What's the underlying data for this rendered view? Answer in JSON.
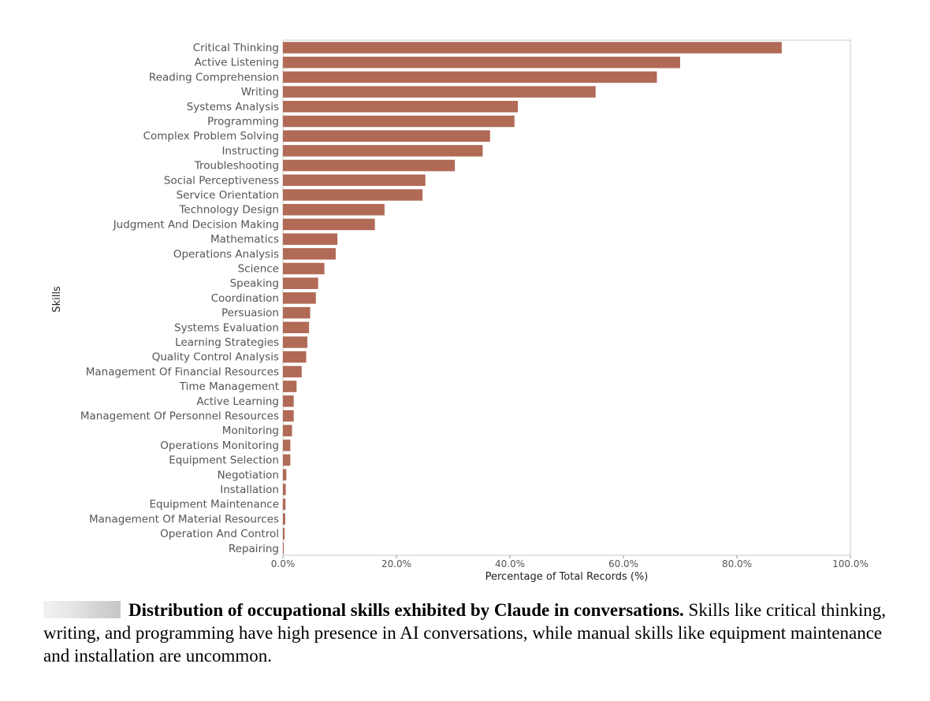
{
  "chart_data": {
    "type": "bar",
    "orientation": "horizontal",
    "xlabel": "Percentage of Total Records (%)",
    "ylabel": "Skills",
    "xlim": [
      0,
      100
    ],
    "xticks": [
      0,
      20,
      40,
      60,
      80,
      100
    ],
    "xtick_labels": [
      "0.0%",
      "20.0%",
      "40.0%",
      "60.0%",
      "80.0%",
      "100.0%"
    ],
    "grid": false,
    "bar_color": "#b06a56",
    "categories": [
      "Critical Thinking",
      "Active Listening",
      "Reading Comprehension",
      "Writing",
      "Systems Analysis",
      "Programming",
      "Complex Problem Solving",
      "Instructing",
      "Troubleshooting",
      "Social Perceptiveness",
      "Service Orientation",
      "Technology Design",
      "Judgment And Decision Making",
      "Mathematics",
      "Operations Analysis",
      "Science",
      "Speaking",
      "Coordination",
      "Persuasion",
      "Systems Evaluation",
      "Learning Strategies",
      "Quality Control Analysis",
      "Management Of Financial Resources",
      "Time Management",
      "Active Learning",
      "Management Of Personnel Resources",
      "Monitoring",
      "Operations Monitoring",
      "Equipment Selection",
      "Negotiation",
      "Installation",
      "Equipment Maintenance",
      "Management Of Material Resources",
      "Operation And Control",
      "Repairing"
    ],
    "values": [
      87.9,
      70.0,
      65.9,
      55.1,
      41.4,
      40.8,
      36.5,
      35.2,
      30.3,
      25.1,
      24.6,
      17.9,
      16.2,
      9.6,
      9.3,
      7.3,
      6.2,
      5.8,
      4.8,
      4.6,
      4.3,
      4.1,
      3.3,
      2.4,
      1.9,
      1.9,
      1.6,
      1.3,
      1.3,
      0.6,
      0.5,
      0.45,
      0.4,
      0.3,
      0.15
    ]
  },
  "caption": {
    "lead": "Distribution of occupational skills exhibited by Claude in conversations.",
    "text": " Skills like critical thinking, writing, and programming have high presence in AI conversations, while manual skills like equipment maintenance and installation are uncommon."
  }
}
